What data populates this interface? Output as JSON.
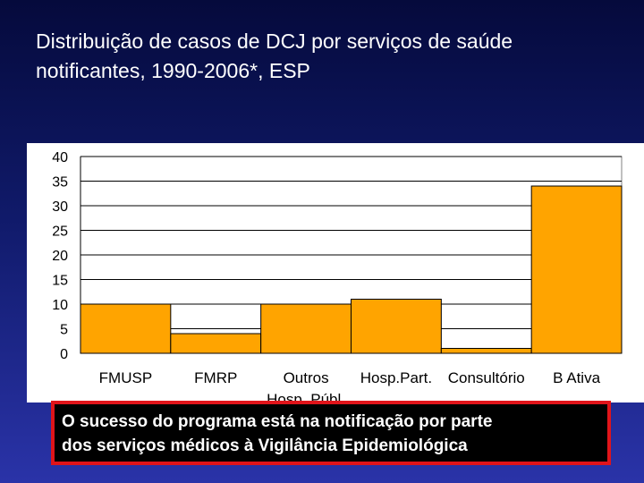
{
  "slide": {
    "title_line1": "Distribuição de casos de DCJ por serviços de saúde",
    "title_line2": "notificantes,  1990-2006*, ESP",
    "callout_line1": "O sucesso do programa está na notificação por parte",
    "callout_line2": "dos serviços médicos à Vigilância Epidemiológica"
  },
  "chart_data": {
    "type": "bar",
    "title": "",
    "xlabel": "",
    "ylabel": "",
    "categories": [
      "FMUSP",
      "FMRP",
      "Outros Hosp. Públ.",
      "Hosp.Part.",
      "Consultório",
      "B Ativa"
    ],
    "category_lines": [
      [
        "FMUSP"
      ],
      [
        "FMRP"
      ],
      [
        "Outros",
        "Hosp. Públ."
      ],
      [
        "Hosp.Part."
      ],
      [
        "Consultório"
      ],
      [
        "B Ativa"
      ]
    ],
    "values": [
      10,
      4,
      10,
      11,
      1,
      34
    ],
    "ylim": [
      0,
      40
    ],
    "yticks": [
      0,
      5,
      10,
      15,
      20,
      25,
      30,
      35,
      40
    ],
    "grid": true,
    "colors": {
      "bar": "#ffa400",
      "bar_stroke": "#000000",
      "grid": "#000000",
      "axis_text": "#000000"
    }
  }
}
